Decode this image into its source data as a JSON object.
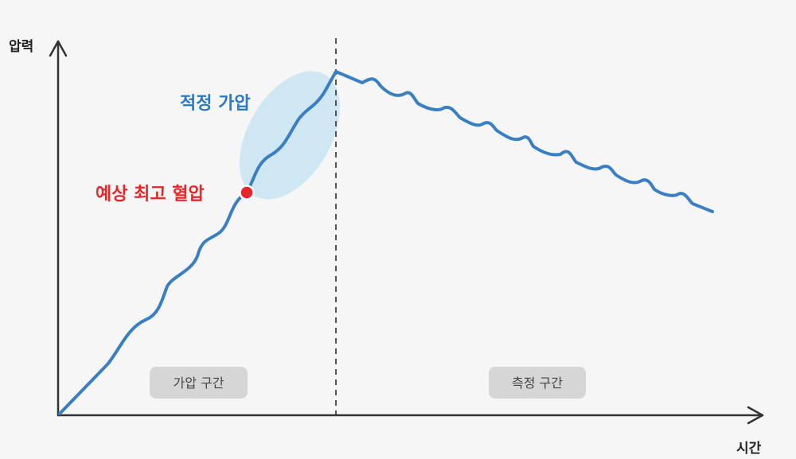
{
  "axes": {
    "y_label": "압력",
    "x_label": "시간"
  },
  "annotations": {
    "optimal_inflation": "적정 가압",
    "estimated_max_bp": "예상 최고 혈압"
  },
  "phases": {
    "inflation": "가압 구간",
    "measurement": "측정 구간"
  },
  "colors": {
    "curve": "#3a7fc4",
    "highlight": "#cfe6f3",
    "optimal_text": "#2d79c0",
    "marker": "#e8262a",
    "marker_text": "#e8262a",
    "phase_box": "#d6d6d6"
  }
}
